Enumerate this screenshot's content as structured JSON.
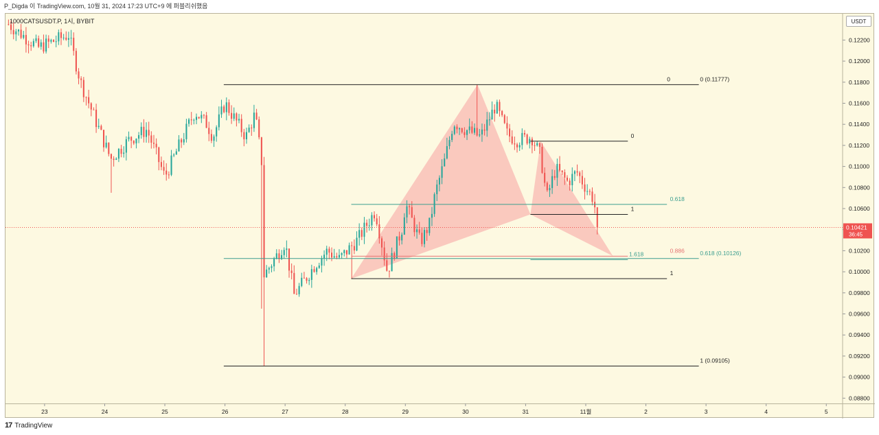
{
  "header": {
    "caption": "P_Digda 이 TradingView.com, 10월 31, 2024 17:23 UTC+9 에 퍼블리쉬했음"
  },
  "symbol": {
    "label": "1000CATSUSDT.P, 1시, BYBIT"
  },
  "footer": {
    "brand": "TradingView"
  },
  "colors": {
    "background": "#fdf9e1",
    "up": "#26a69a",
    "down": "#ef5350",
    "pattern_fill": "#f7a3a3",
    "fib_teal": "#3c9e8f",
    "fib_red": "#e57373",
    "price_tag": "#ef5350"
  },
  "chart_data": {
    "type": "candlestick",
    "unit_label": "USDT",
    "ylim": [
      0.0875,
      0.1245
    ],
    "y_ticks": [
      "0.12200",
      "0.12000",
      "0.11800",
      "0.11600",
      "0.11400",
      "0.11200",
      "0.11000",
      "0.10800",
      "0.10600",
      "0.10400",
      "0.10200",
      "0.10000",
      "0.09800",
      "0.09600",
      "0.09400",
      "0.09200",
      "0.09000",
      "0.08800"
    ],
    "x_ticks": [
      {
        "label": "23",
        "t": 0.5
      },
      {
        "label": "24",
        "t": 1.5
      },
      {
        "label": "25",
        "t": 2.5
      },
      {
        "label": "26",
        "t": 3.5
      },
      {
        "label": "27",
        "t": 4.5
      },
      {
        "label": "28",
        "t": 5.5
      },
      {
        "label": "29",
        "t": 6.5
      },
      {
        "label": "30",
        "t": 7.5
      },
      {
        "label": "31",
        "t": 8.5
      },
      {
        "label": "11월",
        "t": 9.5
      },
      {
        "label": "2",
        "t": 10.5
      },
      {
        "label": "3",
        "t": 11.5
      },
      {
        "label": "4",
        "t": 12.5
      },
      {
        "label": "5",
        "t": 13.5
      }
    ],
    "xlim": [
      -0.15,
      13.76
    ],
    "current_price": {
      "value": "0.10421",
      "countdown": "36:45",
      "y": 0.10421
    },
    "anchors": [
      {
        "t": -0.1,
        "p": 0.1235
      },
      {
        "t": 0.4,
        "p": 0.1213
      },
      {
        "t": 0.9,
        "p": 0.1225
      },
      {
        "t": 1.1,
        "p": 0.118
      },
      {
        "t": 1.6,
        "p": 0.1107
      },
      {
        "t": 1.9,
        "p": 0.1125
      },
      {
        "t": 2.2,
        "p": 0.1135
      },
      {
        "t": 2.5,
        "p": 0.109
      },
      {
        "t": 2.9,
        "p": 0.114
      },
      {
        "t": 3.0,
        "p": 0.1152
      },
      {
        "t": 3.2,
        "p": 0.114
      },
      {
        "t": 3.3,
        "p": 0.1128
      },
      {
        "t": 3.5,
        "p": 0.116
      },
      {
        "t": 3.85,
        "p": 0.1128
      },
      {
        "t": 4.0,
        "p": 0.115
      },
      {
        "t": 4.12,
        "p": 0.11
      },
      {
        "t": 4.14,
        "p": 0.0996
      },
      {
        "t": 4.3,
        "p": 0.101
      },
      {
        "t": 4.5,
        "p": 0.1028
      },
      {
        "t": 4.65,
        "p": 0.0978
      },
      {
        "t": 4.8,
        "p": 0.099
      },
      {
        "t": 5.0,
        "p": 0.1007
      },
      {
        "t": 5.2,
        "p": 0.102
      },
      {
        "t": 5.4,
        "p": 0.1012
      },
      {
        "t": 5.7,
        "p": 0.103
      },
      {
        "t": 6.0,
        "p": 0.1058
      },
      {
        "t": 6.2,
        "p": 0.1
      },
      {
        "t": 6.45,
        "p": 0.1042
      },
      {
        "t": 6.5,
        "p": 0.1065
      },
      {
        "t": 6.75,
        "p": 0.1028
      },
      {
        "t": 6.9,
        "p": 0.1045
      },
      {
        "t": 7.0,
        "p": 0.1075
      },
      {
        "t": 7.15,
        "p": 0.1105
      },
      {
        "t": 7.3,
        "p": 0.1142
      },
      {
        "t": 7.5,
        "p": 0.1135
      },
      {
        "t": 7.75,
        "p": 0.1128
      },
      {
        "t": 8.0,
        "p": 0.1158
      },
      {
        "t": 8.2,
        "p": 0.113
      },
      {
        "t": 8.35,
        "p": 0.1125
      },
      {
        "t": 8.6,
        "p": 0.1128
      },
      {
        "t": 8.75,
        "p": 0.111
      },
      {
        "t": 8.85,
        "p": 0.107
      },
      {
        "t": 9.0,
        "p": 0.1098
      },
      {
        "t": 9.2,
        "p": 0.1085
      },
      {
        "t": 9.35,
        "p": 0.1095
      },
      {
        "t": 9.5,
        "p": 0.108
      },
      {
        "t": 9.62,
        "p": 0.107
      },
      {
        "t": 9.72,
        "p": 0.1042
      }
    ],
    "pattern": {
      "name": "bat",
      "triangles": [
        [
          {
            "t": 5.6,
            "p": 0.09935
          },
          {
            "t": 7.7,
            "p": 0.11777
          },
          {
            "t": 8.58,
            "p": 0.10545
          }
        ],
        [
          {
            "t": 8.58,
            "p": 0.10545
          },
          {
            "t": 8.75,
            "p": 0.1124
          },
          {
            "t": 9.95,
            "p": 0.1015
          }
        ]
      ],
      "lines": [
        {
          "t0": 3.48,
          "t1": 11.38,
          "p": 0.11777,
          "color": "#222",
          "label": "0 (0.11777)",
          "label_t": 11.4
        },
        {
          "t0": 3.48,
          "t1": 11.38,
          "p": 0.09105,
          "color": "#222",
          "label": "1 (0.09105)",
          "label_t": 11.4
        },
        {
          "t0": 3.48,
          "t1": 11.38,
          "p": 0.10126,
          "color": "#3c9e8f",
          "label": "0.618 (0.10126)",
          "label_t": 11.4
        },
        {
          "t0": 5.6,
          "t1": 10.85,
          "p": 0.1064,
          "color": "#3c9e8f",
          "label": "0.618",
          "label_t": 10.9
        },
        {
          "t0": 5.6,
          "t1": 10.85,
          "p": 0.09935,
          "color": "#222",
          "label": "1",
          "label_t": 10.9
        },
        {
          "t0": 5.6,
          "t1": 10.2,
          "p": 0.10148,
          "color": "#e57373",
          "label": "0.886",
          "label_t": 10.9
        },
        {
          "t0": 8.58,
          "t1": 10.2,
          "p": 0.1124,
          "color": "#222",
          "label": "0",
          "label_t": 10.25
        },
        {
          "t0": 8.58,
          "t1": 10.2,
          "p": 0.10545,
          "color": "#222",
          "label": "1",
          "label_t": 10.25
        },
        {
          "t0": 8.58,
          "t1": 10.2,
          "p": 0.10115,
          "color": "#3c9e8f",
          "label": "1.618",
          "label_t": 10.22
        }
      ],
      "top_label": {
        "label": "0",
        "t": 10.85,
        "p": 0.11777
      }
    }
  }
}
